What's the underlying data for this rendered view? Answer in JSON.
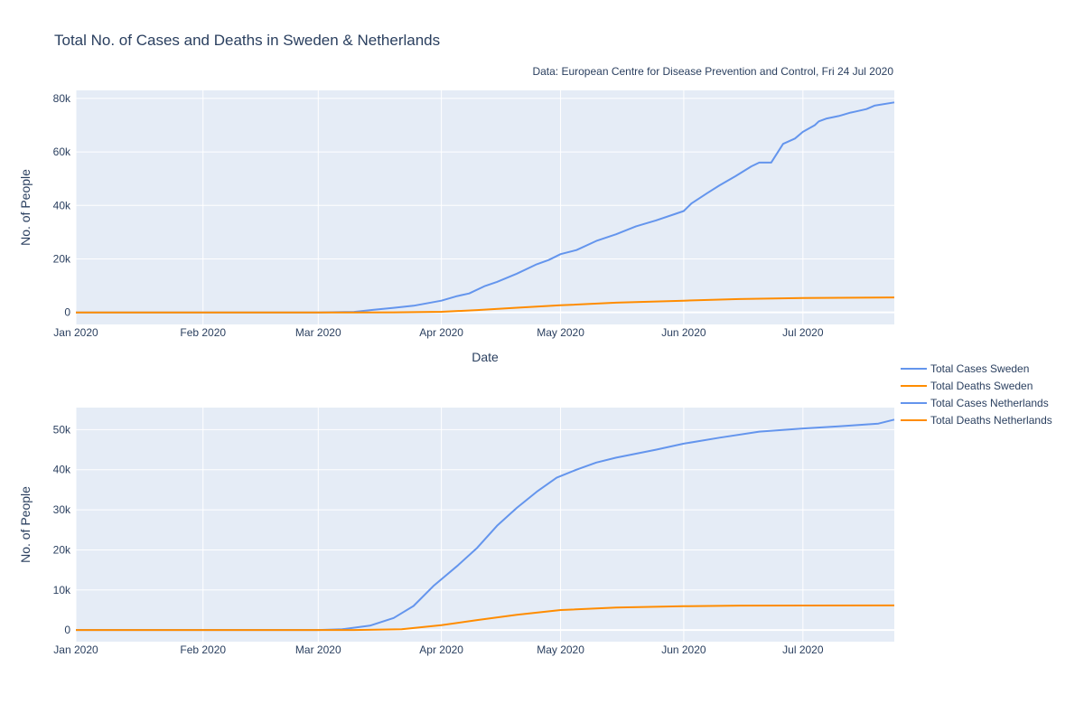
{
  "title": "Total No. of Cases and Deaths in Sweden & Netherlands",
  "subtitle": "Data: European Centre for Disease Prevention and Control, Fri 24 Jul 2020",
  "colors": {
    "cases": "#6495ed",
    "deaths": "#ff8c00",
    "plot_bg": "#e5ecf6"
  },
  "legend": {
    "placement": "right",
    "items": [
      {
        "label": "Total Cases Sweden",
        "color": "#6495ed"
      },
      {
        "label": "Total Deaths Sweden",
        "color": "#ff8c00"
      },
      {
        "label": "Total Cases Netherlands",
        "color": "#6495ed"
      },
      {
        "label": "Total Deaths Netherlands",
        "color": "#ff8c00"
      }
    ]
  },
  "chart_data": [
    {
      "type": "line",
      "xlabel": "Date",
      "ylabel": "No. of People",
      "xlim": [
        "2019-12-31",
        "2020-07-24"
      ],
      "ylim": [
        -4500,
        83000
      ],
      "grid": true,
      "x_ticks": [
        {
          "date": "2019-12-31",
          "label": "Jan 2020"
        },
        {
          "date": "2020-02-01",
          "label": "Feb 2020"
        },
        {
          "date": "2020-03-01",
          "label": "Mar 2020"
        },
        {
          "date": "2020-04-01",
          "label": "Apr 2020"
        },
        {
          "date": "2020-05-01",
          "label": "May 2020"
        },
        {
          "date": "2020-06-01",
          "label": "Jun 2020"
        },
        {
          "date": "2020-07-01",
          "label": "Jul 2020"
        }
      ],
      "y_ticks": [
        {
          "value": 0,
          "label": "0"
        },
        {
          "value": 20000,
          "label": "20k"
        },
        {
          "value": 40000,
          "label": "40k"
        },
        {
          "value": 60000,
          "label": "60k"
        },
        {
          "value": 80000,
          "label": "80k"
        }
      ],
      "series": [
        {
          "name": "Total Cases Sweden",
          "color": "#6495ed",
          "x": [
            "2019-12-31",
            "2020-03-01",
            "2020-03-10",
            "2020-03-15",
            "2020-03-20",
            "2020-03-25",
            "2020-04-01",
            "2020-04-05",
            "2020-04-08",
            "2020-04-12",
            "2020-04-15",
            "2020-04-20",
            "2020-04-25",
            "2020-04-28",
            "2020-05-01",
            "2020-05-05",
            "2020-05-10",
            "2020-05-15",
            "2020-05-20",
            "2020-05-25",
            "2020-05-30",
            "2020-06-01",
            "2020-06-03",
            "2020-06-07",
            "2020-06-10",
            "2020-06-14",
            "2020-06-18",
            "2020-06-20",
            "2020-06-21",
            "2020-06-23",
            "2020-06-26",
            "2020-06-29",
            "2020-07-01",
            "2020-07-04",
            "2020-07-05",
            "2020-07-07",
            "2020-07-10",
            "2020-07-13",
            "2020-07-14",
            "2020-07-17",
            "2020-07-19",
            "2020-07-24"
          ],
          "values": [
            0,
            0,
            200,
            1000,
            1700,
            2500,
            4400,
            6100,
            7100,
            9900,
            11400,
            14500,
            18000,
            19600,
            21800,
            23300,
            26700,
            29200,
            32200,
            34400,
            36900,
            37900,
            40800,
            44700,
            47500,
            50900,
            54600,
            56000,
            56000,
            56000,
            63000,
            65000,
            67500,
            70000,
            71400,
            72500,
            73400,
            74700,
            75000,
            76000,
            77300,
            78500
          ]
        },
        {
          "name": "Total Deaths Sweden",
          "color": "#ff8c00",
          "x": [
            "2019-12-31",
            "2020-03-10",
            "2020-03-20",
            "2020-04-01",
            "2020-04-10",
            "2020-04-20",
            "2020-05-01",
            "2020-05-15",
            "2020-06-01",
            "2020-06-15",
            "2020-07-01",
            "2020-07-24"
          ],
          "values": [
            0,
            0,
            20,
            240,
            870,
            1760,
            2650,
            3650,
            4400,
            5000,
            5400,
            5600
          ]
        }
      ]
    },
    {
      "type": "line",
      "xlabel": "",
      "ylabel": "No. of People",
      "xlim": [
        "2019-12-31",
        "2020-07-24"
      ],
      "ylim": [
        -2900,
        55500
      ],
      "grid": true,
      "x_ticks": [
        {
          "date": "2019-12-31",
          "label": "Jan 2020"
        },
        {
          "date": "2020-02-01",
          "label": "Feb 2020"
        },
        {
          "date": "2020-03-01",
          "label": "Mar 2020"
        },
        {
          "date": "2020-04-01",
          "label": "Apr 2020"
        },
        {
          "date": "2020-05-01",
          "label": "May 2020"
        },
        {
          "date": "2020-06-01",
          "label": "Jun 2020"
        },
        {
          "date": "2020-07-01",
          "label": "Jul 2020"
        }
      ],
      "y_ticks": [
        {
          "value": 0,
          "label": "0"
        },
        {
          "value": 10000,
          "label": "10k"
        },
        {
          "value": 20000,
          "label": "20k"
        },
        {
          "value": 30000,
          "label": "30k"
        },
        {
          "value": 40000,
          "label": "40k"
        },
        {
          "value": 50000,
          "label": "50k"
        }
      ],
      "series": [
        {
          "name": "Total Cases Netherlands",
          "color": "#6495ed",
          "x": [
            "2019-12-31",
            "2020-03-01",
            "2020-03-07",
            "2020-03-14",
            "2020-03-20",
            "2020-03-25",
            "2020-03-30",
            "2020-04-05",
            "2020-04-10",
            "2020-04-15",
            "2020-04-20",
            "2020-04-25",
            "2020-04-30",
            "2020-05-05",
            "2020-05-10",
            "2020-05-15",
            "2020-05-20",
            "2020-05-25",
            "2020-06-01",
            "2020-06-10",
            "2020-06-20",
            "2020-07-01",
            "2020-07-10",
            "2020-07-20",
            "2020-07-24"
          ],
          "values": [
            0,
            0,
            200,
            1100,
            3000,
            6000,
            11000,
            16000,
            20500,
            26000,
            30500,
            34500,
            38000,
            40000,
            41800,
            43000,
            44000,
            45000,
            46500,
            48000,
            49500,
            50300,
            50800,
            51500,
            52500
          ]
        },
        {
          "name": "Total Deaths Netherlands",
          "color": "#ff8c00",
          "x": [
            "2019-12-31",
            "2020-03-10",
            "2020-03-22",
            "2020-04-01",
            "2020-04-10",
            "2020-04-20",
            "2020-05-01",
            "2020-05-15",
            "2020-06-01",
            "2020-06-15",
            "2020-07-01",
            "2020-07-24"
          ],
          "values": [
            0,
            0,
            180,
            1200,
            2500,
            3800,
            5000,
            5600,
            5950,
            6100,
            6130,
            6150
          ]
        }
      ]
    }
  ]
}
